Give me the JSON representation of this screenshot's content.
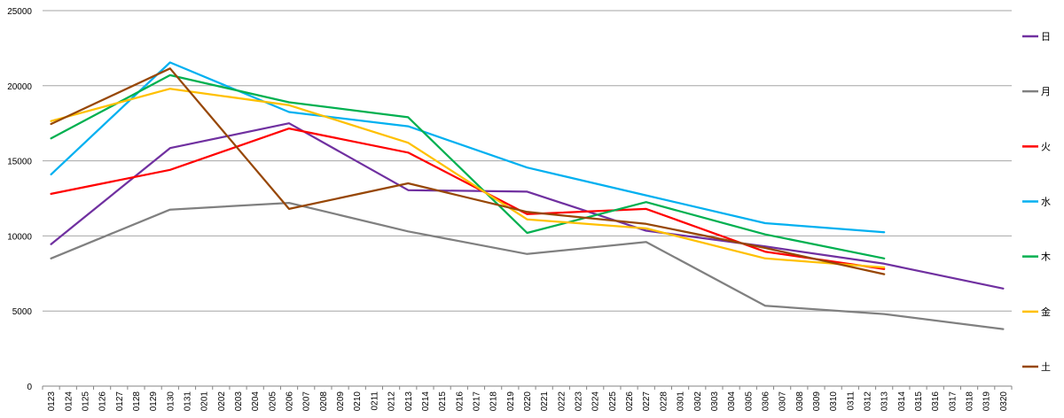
{
  "chart_data": {
    "type": "line",
    "title": "",
    "xlabel": "",
    "ylabel": "",
    "ylim": [
      0,
      25000
    ],
    "y_ticks": [
      "0",
      "5000",
      "10000",
      "15000",
      "20000",
      "25000"
    ],
    "grid": "horizontal",
    "legend_position": "right",
    "categories": [
      "0123",
      "0124",
      "0125",
      "0126",
      "0127",
      "0128",
      "0129",
      "0130",
      "0131",
      "0201",
      "0202",
      "0203",
      "0204",
      "0205",
      "0206",
      "0207",
      "0208",
      "0209",
      "0210",
      "0211",
      "0212",
      "0213",
      "0214",
      "0215",
      "0216",
      "0217",
      "0218",
      "0219",
      "0220",
      "0221",
      "0222",
      "0223",
      "0224",
      "0225",
      "0226",
      "0227",
      "0228",
      "0301",
      "0302",
      "0303",
      "0304",
      "0305",
      "0306",
      "0307",
      "0308",
      "0309",
      "0310",
      "0311",
      "0312",
      "0313",
      "0314",
      "0315",
      "0316",
      "0317",
      "0318",
      "0319",
      "0320"
    ],
    "series": [
      {
        "name": "日",
        "color": "#7030a0",
        "points": [
          [
            "0123",
            9450
          ],
          [
            "0130",
            15850
          ],
          [
            "0206",
            17500
          ],
          [
            "0213",
            13050
          ],
          [
            "0220",
            12950
          ],
          [
            "0227",
            10350
          ],
          [
            "0306",
            9300
          ],
          [
            "0313",
            8150
          ],
          [
            "0320",
            6500
          ]
        ]
      },
      {
        "name": "月",
        "color": "#808080",
        "points": [
          [
            "0123",
            8500
          ],
          [
            "0130",
            11750
          ],
          [
            "0206",
            12200
          ],
          [
            "0213",
            10300
          ],
          [
            "0220",
            8800
          ],
          [
            "0227",
            9600
          ],
          [
            "0306",
            5350
          ],
          [
            "0313",
            4800
          ],
          [
            "0320",
            3800
          ]
        ]
      },
      {
        "name": "火",
        "color": "#ff0000",
        "points": [
          [
            "0123",
            12800
          ],
          [
            "0130",
            14400
          ],
          [
            "0206",
            17150
          ],
          [
            "0213",
            15550
          ],
          [
            "0220",
            11450
          ],
          [
            "0227",
            11800
          ],
          [
            "0306",
            8950
          ],
          [
            "0313",
            7800
          ]
        ]
      },
      {
        "name": "水",
        "color": "#00b0f0",
        "points": [
          [
            "0123",
            14100
          ],
          [
            "0130",
            21550
          ],
          [
            "0206",
            18250
          ],
          [
            "0213",
            17300
          ],
          [
            "0220",
            14550
          ],
          [
            "0227",
            12700
          ],
          [
            "0306",
            10850
          ],
          [
            "0313",
            10250
          ]
        ]
      },
      {
        "name": "木",
        "color": "#00b050",
        "points": [
          [
            "0123",
            16500
          ],
          [
            "0130",
            20700
          ],
          [
            "0206",
            18900
          ],
          [
            "0213",
            17900
          ],
          [
            "0220",
            10200
          ],
          [
            "0227",
            12250
          ],
          [
            "0306",
            10100
          ],
          [
            "0313",
            8500
          ]
        ]
      },
      {
        "name": "金",
        "color": "#ffc000",
        "points": [
          [
            "0123",
            17650
          ],
          [
            "0130",
            19800
          ],
          [
            "0206",
            18700
          ],
          [
            "0213",
            16200
          ],
          [
            "0220",
            11100
          ],
          [
            "0227",
            10500
          ],
          [
            "0306",
            8500
          ],
          [
            "0313",
            7900
          ]
        ]
      },
      {
        "name": "土",
        "color": "#974706",
        "points": [
          [
            "0123",
            17450
          ],
          [
            "0130",
            21150
          ],
          [
            "0206",
            11800
          ],
          [
            "0213",
            13500
          ],
          [
            "0220",
            11600
          ],
          [
            "0227",
            10800
          ],
          [
            "0306",
            9200
          ],
          [
            "0313",
            7450
          ]
        ]
      }
    ]
  }
}
